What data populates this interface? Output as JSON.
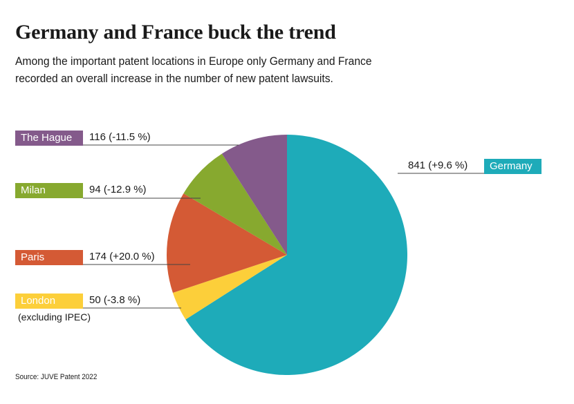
{
  "title": "Germany and France buck the trend",
  "subtitle": "Among the important patent locations in Europe only Germany and France recorded an overall increase in the number of new patent lawsuits.",
  "source": "Source: JUVE Patent 2022",
  "chart_data": {
    "type": "pie",
    "slices": [
      {
        "name": "Germany",
        "value": 841,
        "label": "841 (+9.6 %)",
        "color": "#1eabb9"
      },
      {
        "name": "London",
        "value": 50,
        "label": "50 (-3.8 %)",
        "color": "#fccf3a",
        "note": "(excluding IPEC)"
      },
      {
        "name": "Paris",
        "value": 174,
        "label": "174 (+20.0 %)",
        "color": "#d45a35"
      },
      {
        "name": "Milan",
        "value": 94,
        "label": "94 (-12.9 %)",
        "color": "#87a92f"
      },
      {
        "name": "The Hague",
        "value": 116,
        "label": "116 (-11.5 %)",
        "color": "#845a8b"
      }
    ]
  }
}
